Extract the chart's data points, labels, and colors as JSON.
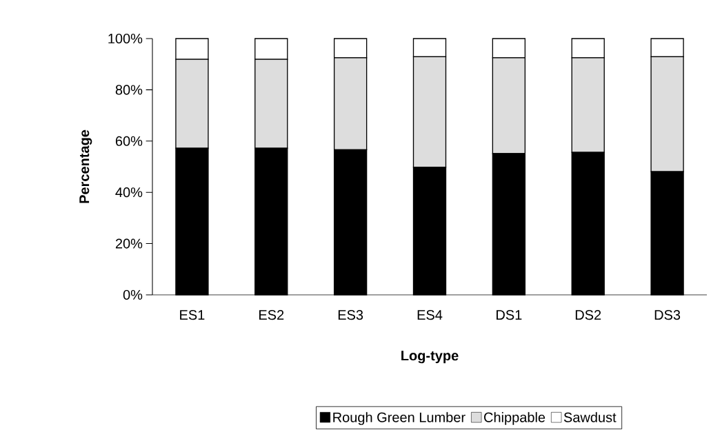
{
  "chart_data": {
    "type": "bar",
    "stacked": true,
    "xlabel": "Log-type",
    "ylabel": "Percentage",
    "categories": [
      "ES1",
      "ES2",
      "ES3",
      "ES4",
      "DS1",
      "DS2",
      "DS3"
    ],
    "series": [
      {
        "name": "Rough Green Lumber",
        "color": "#000000",
        "values": [
          57.2,
          57.2,
          56.6,
          49.8,
          55.1,
          55.6,
          48.1
        ]
      },
      {
        "name": "Chippable",
        "color": "#dddddd",
        "values": [
          34.7,
          34.7,
          35.9,
          43.1,
          37.4,
          36.9,
          44.8
        ]
      },
      {
        "name": "Sawdust",
        "color": "#ffffff",
        "values": [
          8.1,
          8.1,
          7.5,
          7.1,
          7.5,
          7.5,
          7.1
        ]
      }
    ],
    "ylim": [
      0,
      100
    ],
    "yticks": [
      {
        "value": 0,
        "label": "0%"
      },
      {
        "value": 20,
        "label": "20%"
      },
      {
        "value": 40,
        "label": "40%"
      },
      {
        "value": 60,
        "label": "60%"
      },
      {
        "value": 80,
        "label": "80%"
      },
      {
        "value": 100,
        "label": "100%"
      }
    ],
    "grid": false,
    "legend": "bottom"
  }
}
